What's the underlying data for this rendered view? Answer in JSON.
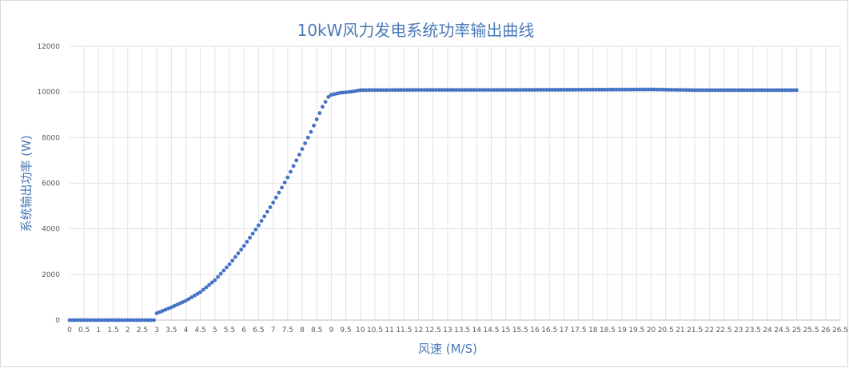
{
  "chart_data": {
    "type": "scatter",
    "title": "10kW风力发电系统功率输出曲线",
    "xlabel": "风速 (M/S)",
    "ylabel": "系统输出功率 (W)",
    "xlim": [
      0,
      26.5
    ],
    "ylim": [
      0,
      12000
    ],
    "x_ticks": [
      "0",
      "0.5",
      "1",
      "1.5",
      "2",
      "2.5",
      "3",
      "3.5",
      "4",
      "4.5",
      "5",
      "5.5",
      "6",
      "6.5",
      "7",
      "7.5",
      "8",
      "8.5",
      "9",
      "9.5",
      "10",
      "10.5",
      "11",
      "11.5",
      "12",
      "12.5",
      "13",
      "13.5",
      "14",
      "14.5",
      "15",
      "15.5",
      "16",
      "16.5",
      "17",
      "17.5",
      "18",
      "18.5",
      "19",
      "19.5",
      "20",
      "20.5",
      "21",
      "21.5",
      "22",
      "22.5",
      "23",
      "23.5",
      "24",
      "24.5",
      "25",
      "25.5",
      "26",
      "26.5"
    ],
    "y_ticks": [
      "0",
      "2000",
      "4000",
      "6000",
      "8000",
      "10000",
      "12000"
    ],
    "grid": true,
    "marker_color": "#4472c4",
    "series": [
      {
        "x_start": 0,
        "x_end": 25,
        "x_step": 0.1,
        "points": [
          [
            0,
            0
          ],
          [
            2.9,
            0
          ],
          [
            3.0,
            300
          ],
          [
            3.5,
            560
          ],
          [
            4.0,
            850
          ],
          [
            4.5,
            1230
          ],
          [
            5.0,
            1750
          ],
          [
            5.5,
            2450
          ],
          [
            6.0,
            3250
          ],
          [
            6.5,
            4150
          ],
          [
            7.0,
            5150
          ],
          [
            7.5,
            6250
          ],
          [
            8.0,
            7500
          ],
          [
            8.3,
            8250
          ],
          [
            8.5,
            8800
          ],
          [
            8.7,
            9350
          ],
          [
            8.9,
            9780
          ],
          [
            9.0,
            9870
          ],
          [
            9.3,
            9960
          ],
          [
            9.7,
            10010
          ],
          [
            10.0,
            10080
          ],
          [
            12.0,
            10090
          ],
          [
            15.0,
            10090
          ],
          [
            18.0,
            10100
          ],
          [
            20.0,
            10110
          ],
          [
            21.5,
            10080
          ],
          [
            25.0,
            10080
          ]
        ]
      }
    ]
  }
}
